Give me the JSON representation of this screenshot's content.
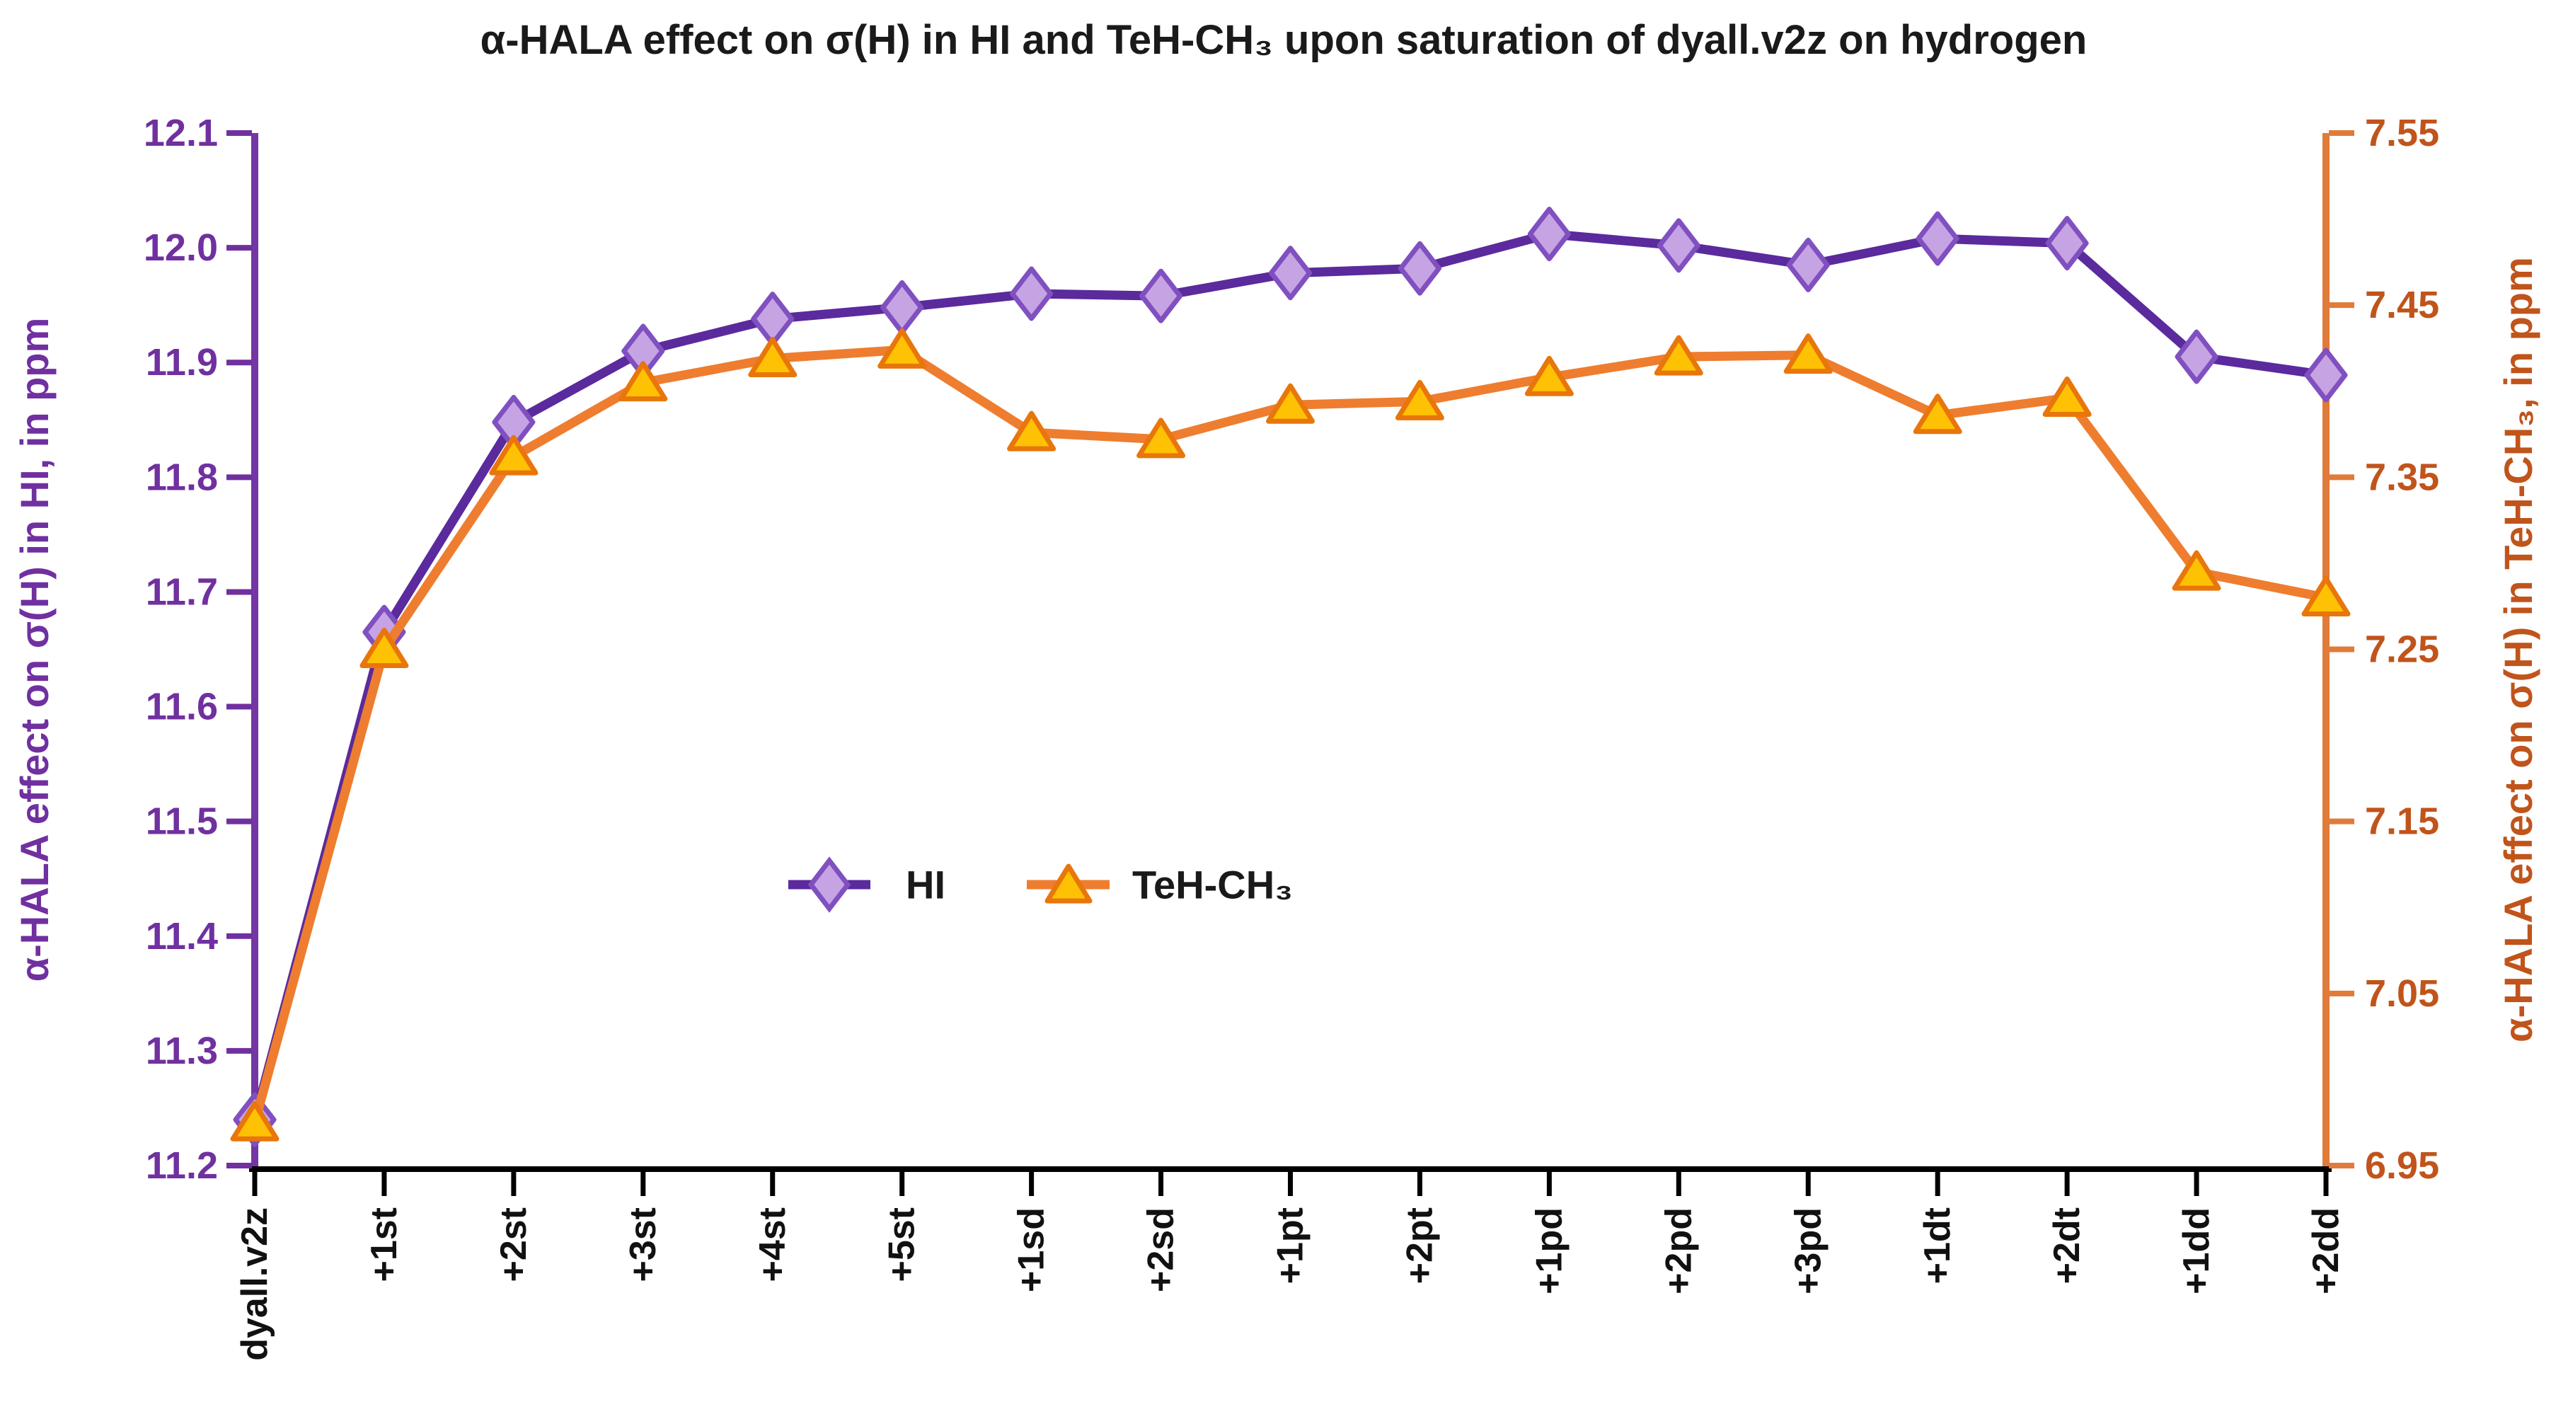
{
  "page": {
    "background": "#ffffff"
  },
  "chart_data": {
    "type": "line",
    "title": "α-HALA effect on σ(H) in HI and TeH-CH₃ upon saturation of dyall.v2z on hydrogen",
    "categories": [
      "dyall.v2z",
      "+1st",
      "+2st",
      "+3st",
      "+4st",
      "+5st",
      "+1sd",
      "+2sd",
      "+1pt",
      "+2pt",
      "+1pd",
      "+2pd",
      "+3pd",
      "+1dt",
      "+2dt",
      "+1dd",
      "+2dd"
    ],
    "series": [
      {
        "name": "HI",
        "axis": "left",
        "marker": "diamond",
        "line_color": "#5B2A9D",
        "marker_fill": "#C6A4E4",
        "marker_stroke": "#8050C0",
        "values": [
          11.24,
          11.665,
          11.848,
          11.91,
          11.938,
          11.948,
          11.96,
          11.958,
          11.978,
          11.982,
          12.012,
          12.002,
          11.985,
          12.008,
          12.004,
          11.905,
          11.889
        ]
      },
      {
        "name": "TeH-CH₃",
        "axis": "right",
        "marker": "triangle",
        "line_color": "#EE7D2F",
        "marker_fill": "#FFC104",
        "marker_stroke": "#E8760B",
        "values": [
          6.975,
          7.25,
          7.362,
          7.405,
          7.419,
          7.424,
          7.376,
          7.372,
          7.392,
          7.394,
          7.408,
          7.42,
          7.421,
          7.386,
          7.396,
          7.295,
          7.28
        ]
      }
    ],
    "y_left": {
      "label": "α-HALA effect on σ(H) in HI, in ppm",
      "color": "#7030A0",
      "axis_line_color": "#7436A4",
      "min": 11.2,
      "max": 12.1,
      "tick_step": 0.1,
      "tick_labels": [
        "12.1",
        "12.0",
        "11.9",
        "11.8",
        "11.7",
        "11.6",
        "11.5",
        "11.4",
        "11.3",
        "11.2"
      ]
    },
    "y_right": {
      "label": "α-HALA effect on σ(H) in TeH-CH₃, in ppm",
      "color": "#C0541B",
      "axis_line_color": "#E07B39",
      "min": 6.95,
      "max": 7.55,
      "tick_step": 0.1,
      "tick_labels": [
        "7.55",
        "7.45",
        "7.35",
        "7.25",
        "7.15",
        "7.05",
        "6.95"
      ]
    },
    "x_axis": {
      "line_color": "#000000",
      "label_color": "#111111"
    },
    "legend": {
      "position": "center-middle",
      "entries": [
        "HI",
        "TeH-CH₃"
      ]
    },
    "grid": false
  }
}
